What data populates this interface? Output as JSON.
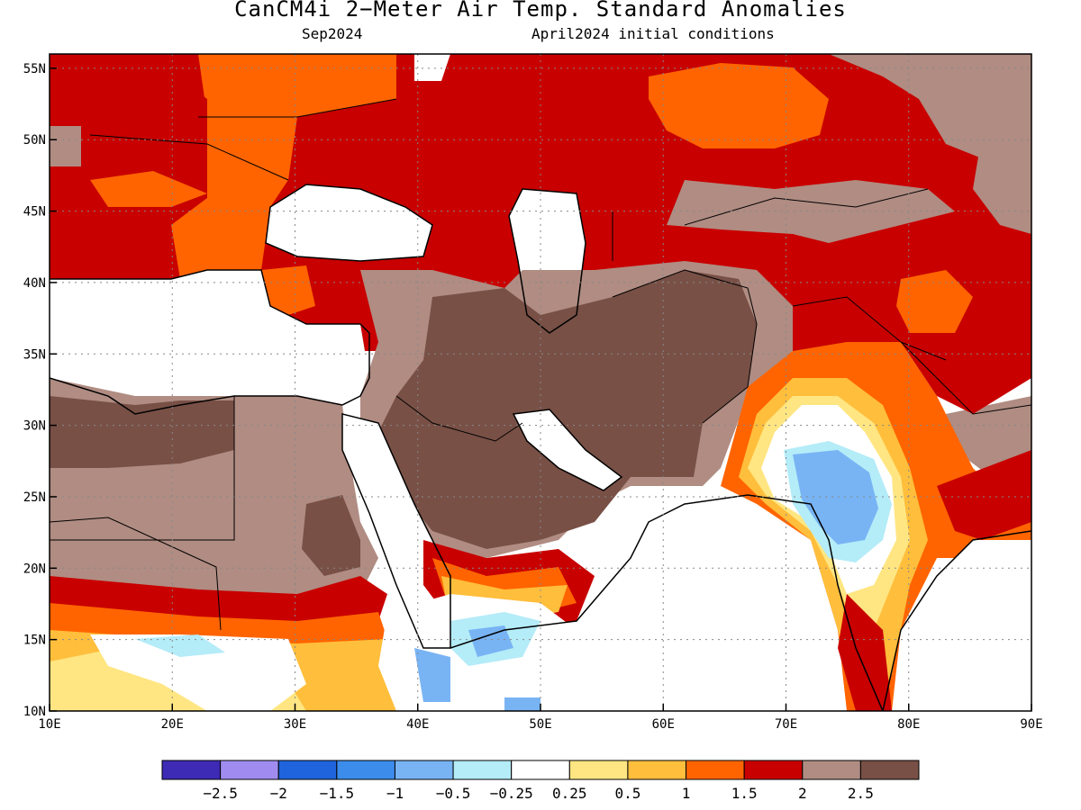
{
  "title": "CanCM4i 2−Meter Air Temp. Standard Anomalies",
  "subtitle_left": "Sep2024",
  "subtitle_right": "April2024 initial conditions",
  "map": {
    "lon_range": [
      10,
      90
    ],
    "lat_range": [
      10,
      56
    ],
    "lon_ticks": [
      {
        "value": 10,
        "label": "10E"
      },
      {
        "value": 20,
        "label": "20E"
      },
      {
        "value": 30,
        "label": "30E"
      },
      {
        "value": 40,
        "label": "40E"
      },
      {
        "value": 50,
        "label": "50E"
      },
      {
        "value": 60,
        "label": "60E"
      },
      {
        "value": 70,
        "label": "70E"
      },
      {
        "value": 80,
        "label": "80E"
      },
      {
        "value": 90,
        "label": "90E"
      }
    ],
    "lat_ticks": [
      {
        "value": 10,
        "label": "10N"
      },
      {
        "value": 15,
        "label": "15N"
      },
      {
        "value": 20,
        "label": "20N"
      },
      {
        "value": 25,
        "label": "25N"
      },
      {
        "value": 30,
        "label": "30N"
      },
      {
        "value": 35,
        "label": "35N"
      },
      {
        "value": 40,
        "label": "40N"
      },
      {
        "value": 45,
        "label": "45N"
      },
      {
        "value": 50,
        "label": "50N"
      },
      {
        "value": 55,
        "label": "55N"
      }
    ],
    "grid": true
  },
  "colorbar": {
    "colors": [
      "#3d2bb5",
      "#a08cf0",
      "#1f64dc",
      "#3c8cec",
      "#78b4f4",
      "#b4ecf8",
      "#ffffff",
      "#ffe682",
      "#ffbe3c",
      "#ff6400",
      "#c80000",
      "#b08c82",
      "#785046"
    ],
    "labels": [
      "−2.5",
      "−2",
      "−1.5",
      "−1",
      "−0.5",
      "−0.25",
      "0.25",
      "0.5",
      "1",
      "1.5",
      "2",
      "2.5"
    ]
  }
}
